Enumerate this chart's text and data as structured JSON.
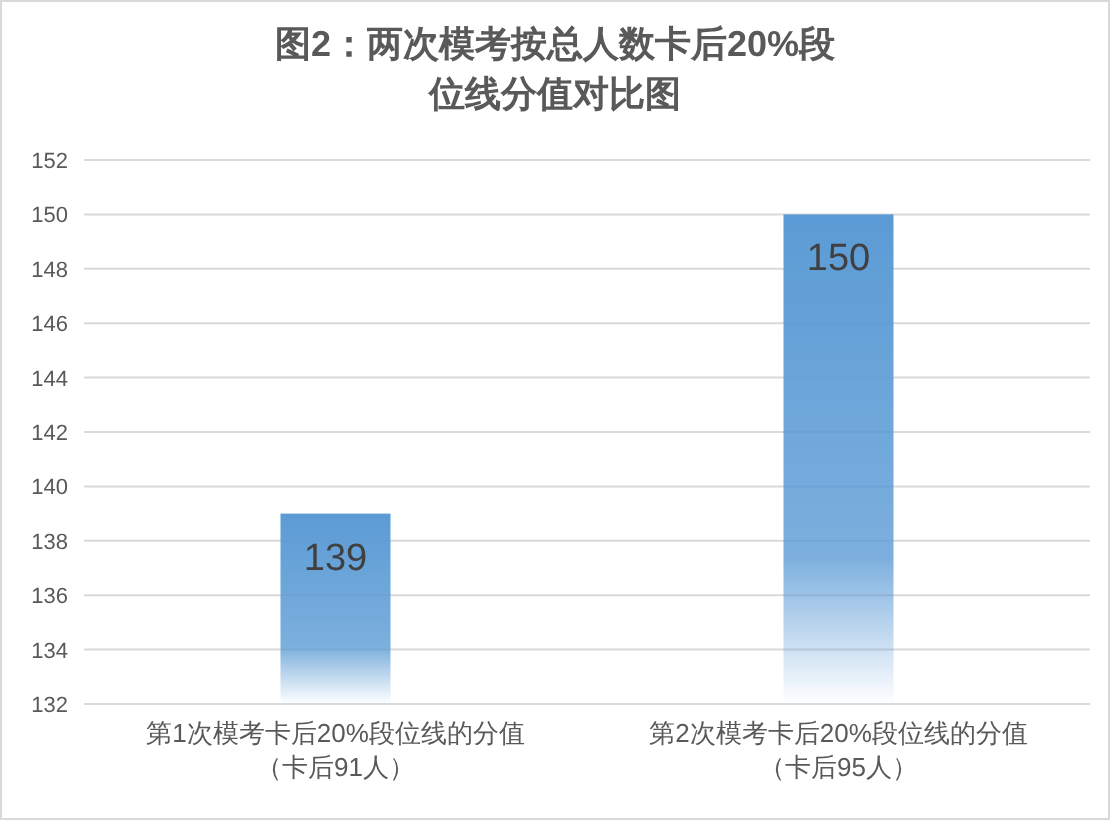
{
  "chart_data": {
    "type": "bar",
    "title": "图2：两次模考按总人数卡后20%段位线分值对比图",
    "categories": [
      "第1次模考卡后20%段位线的分值（卡后91人）",
      "第2次模考卡后20%段位线的分值（卡后95人）"
    ],
    "values": [
      139,
      150
    ],
    "color": "#5b9bd5",
    "ylim": [
      132,
      152
    ],
    "yticks": [
      132,
      134,
      136,
      138,
      140,
      142,
      144,
      146,
      148,
      150,
      152
    ],
    "grid": "y",
    "data_labels": true
  }
}
